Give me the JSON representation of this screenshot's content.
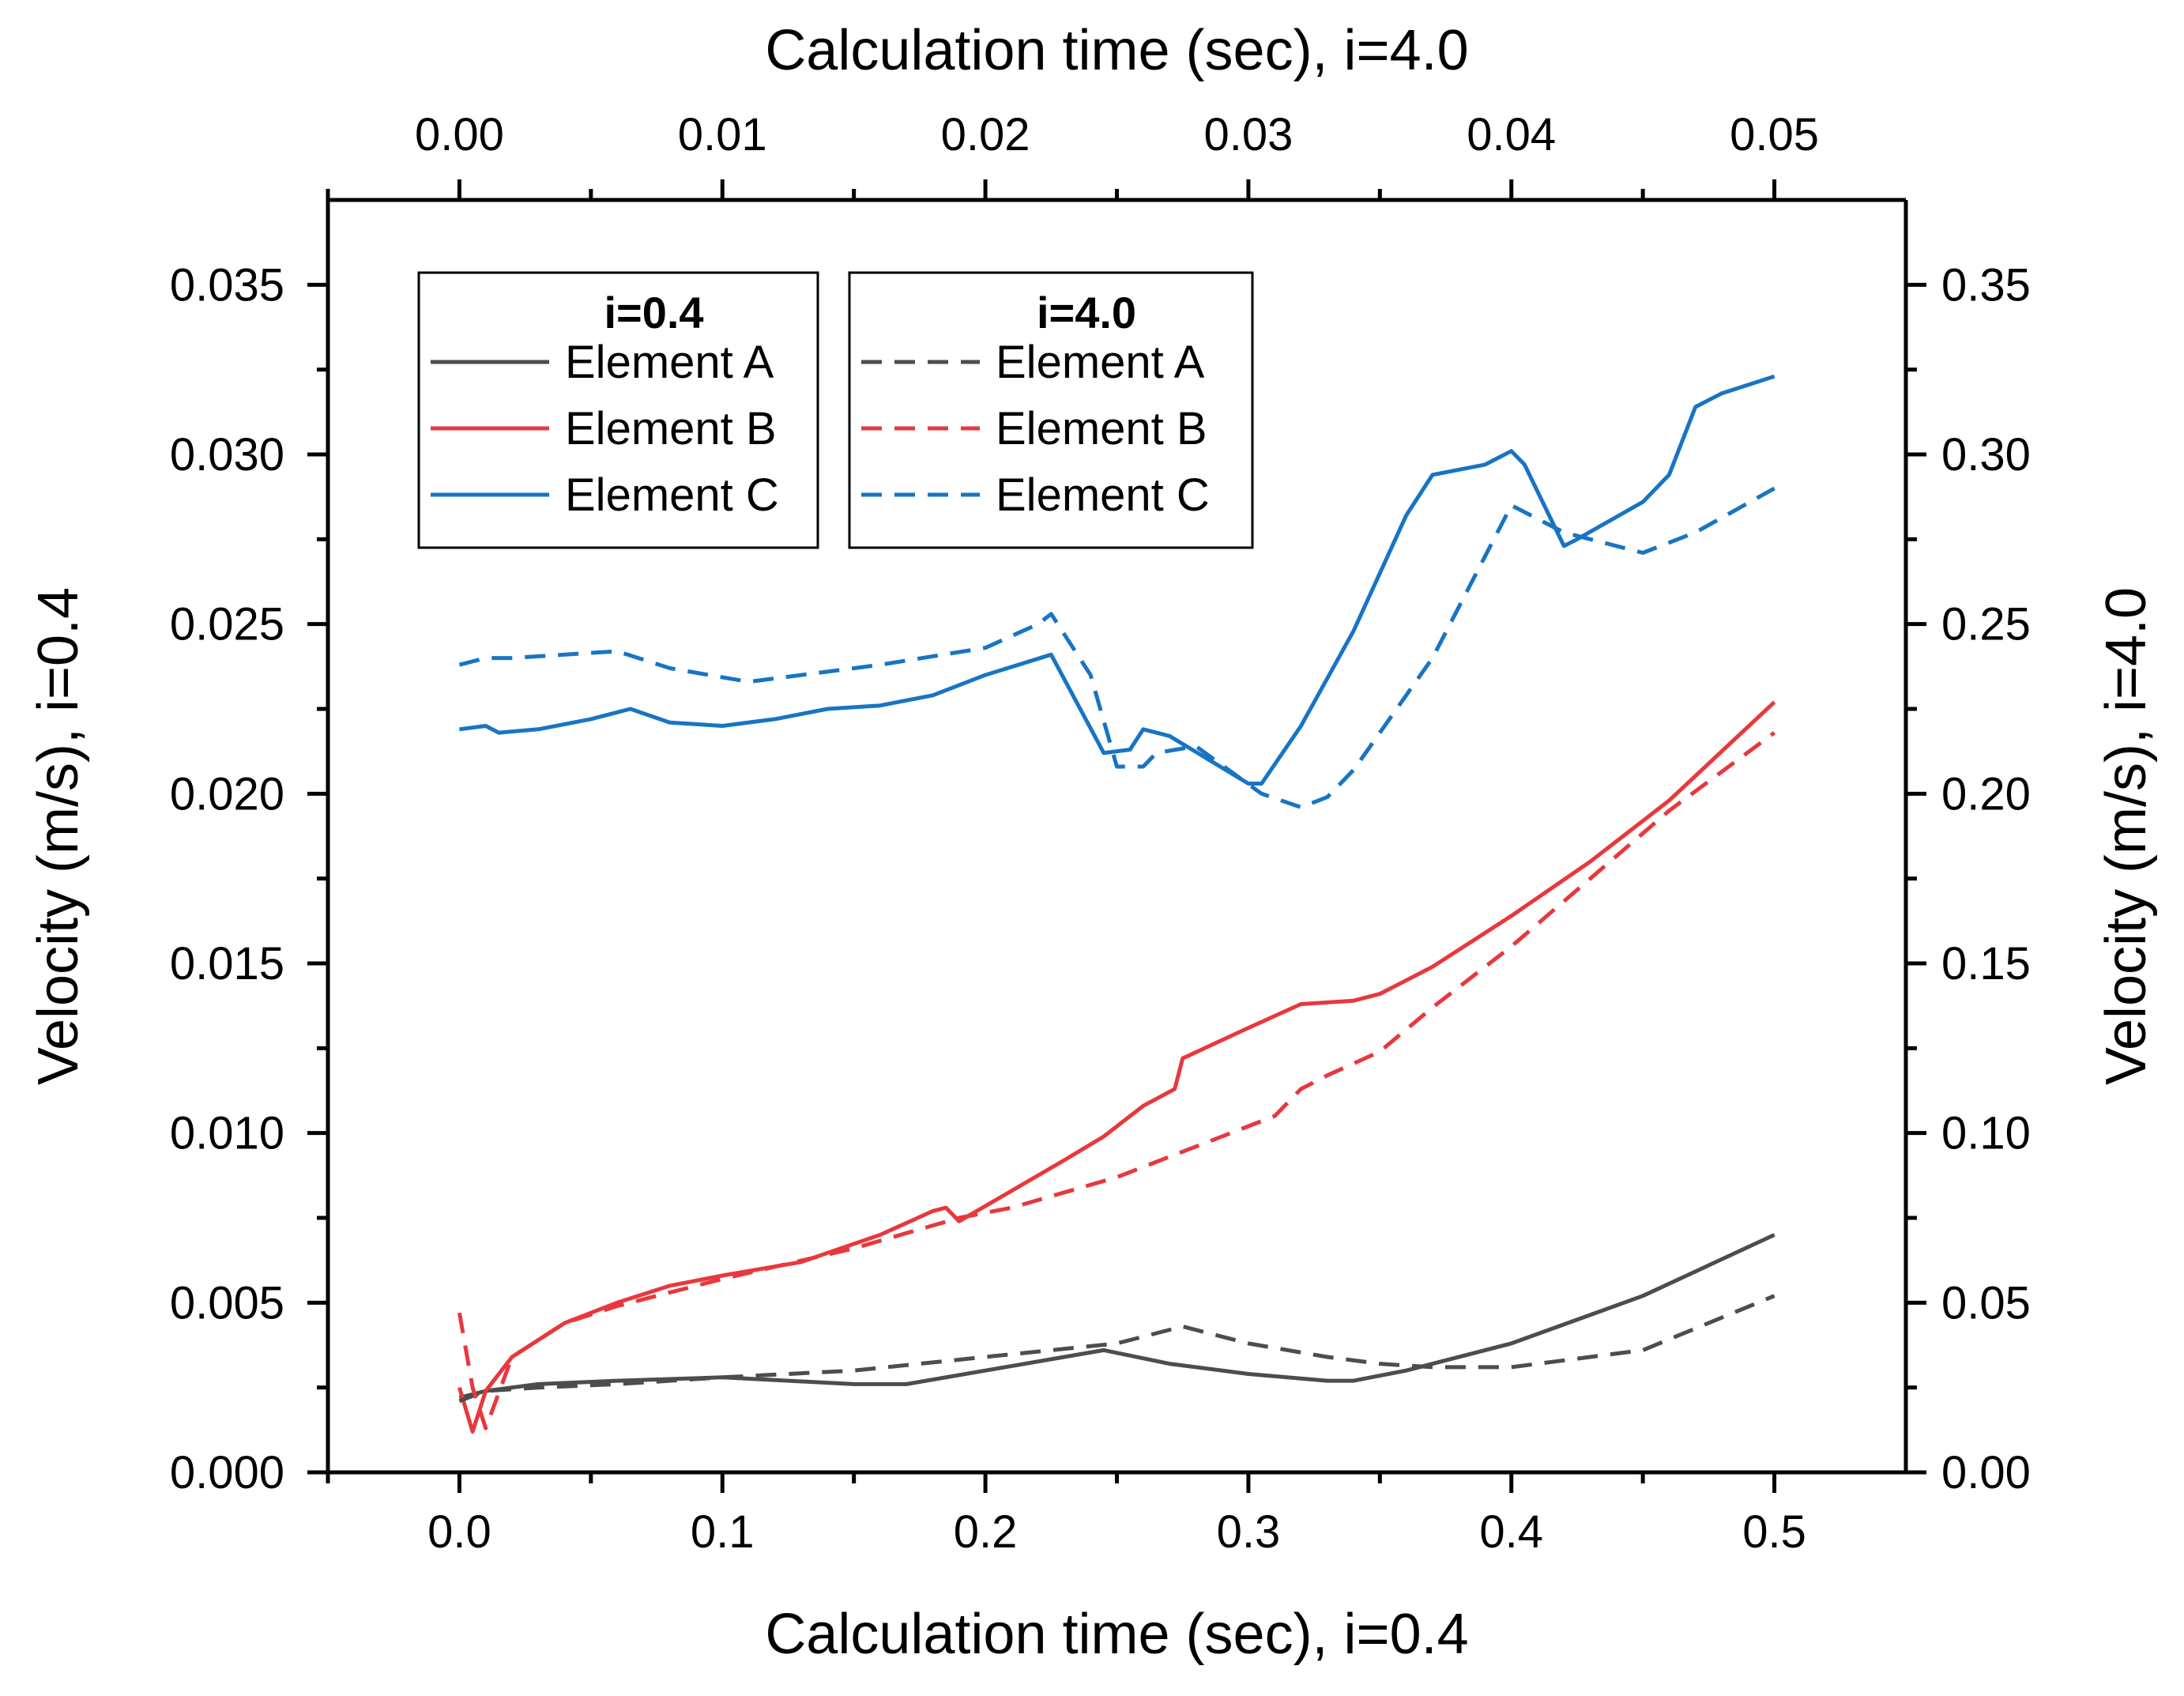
{
  "chart_data": {
    "type": "line",
    "axes": {
      "x_bottom": {
        "label": "Calculation time (sec), i=0.4",
        "range": [
          -0.05,
          0.55
        ],
        "ticks": [
          "0.0",
          "0.1",
          "0.2",
          "0.3",
          "0.4",
          "0.5"
        ],
        "tick_values": [
          0.0,
          0.1,
          0.2,
          0.3,
          0.4,
          0.5
        ]
      },
      "x_top": {
        "label": "Calculation time (sec), i=4.0",
        "range": [
          -0.005,
          0.055
        ],
        "ticks": [
          "0.00",
          "0.01",
          "0.02",
          "0.03",
          "0.04",
          "0.05"
        ],
        "tick_values": [
          0.0,
          0.01,
          0.02,
          0.03,
          0.04,
          0.05
        ]
      },
      "y_left": {
        "label": "Velocity (m/s), i=0.4",
        "range": [
          0.0,
          0.0375
        ],
        "ticks": [
          "0.000",
          "0.005",
          "0.010",
          "0.015",
          "0.020",
          "0.025",
          "0.030",
          "0.035"
        ],
        "tick_values": [
          0.0,
          0.005,
          0.01,
          0.015,
          0.02,
          0.025,
          0.03,
          0.035
        ]
      },
      "y_right": {
        "label": "Velocity (m/s), i=4.0",
        "range": [
          0.0,
          0.375
        ],
        "ticks": [
          "0.00",
          "0.05",
          "0.10",
          "0.15",
          "0.20",
          "0.25",
          "0.30",
          "0.35"
        ],
        "tick_values": [
          0.0,
          0.05,
          0.1,
          0.15,
          0.2,
          0.25,
          0.3,
          0.35
        ]
      }
    },
    "grid": false,
    "legend": {
      "placement": "top-left",
      "groups": [
        {
          "title": "i=0.4",
          "entries": [
            "Element A",
            "Element B",
            "Element C"
          ],
          "style": "solid"
        },
        {
          "title": "i=4.0",
          "entries": [
            "Element A",
            "Element B",
            "Element C"
          ],
          "style": "dashed"
        }
      ]
    },
    "colors": {
      "Element A": "#4d4d4d",
      "Element B": "#e8383d",
      "Element C": "#1874c4",
      "axes": "#000000"
    },
    "series": [
      {
        "name": "Element A",
        "group": "i=0.4",
        "dash": false,
        "x_axis": "bottom",
        "y_axis": "left",
        "x": [
          0.0,
          0.01,
          0.03,
          0.06,
          0.1,
          0.15,
          0.17,
          0.2,
          0.23,
          0.245,
          0.27,
          0.3,
          0.33,
          0.34,
          0.36,
          0.4,
          0.45,
          0.5
        ],
        "y": [
          0.0022,
          0.0024,
          0.0026,
          0.0027,
          0.0028,
          0.0026,
          0.0026,
          0.003,
          0.0034,
          0.0036,
          0.0032,
          0.0029,
          0.0027,
          0.0027,
          0.003,
          0.0038,
          0.0052,
          0.007
        ]
      },
      {
        "name": "Element B",
        "group": "i=0.4",
        "dash": false,
        "x_axis": "bottom",
        "y_axis": "left",
        "x": [
          0.0,
          0.005,
          0.01,
          0.02,
          0.04,
          0.06,
          0.08,
          0.1,
          0.13,
          0.16,
          0.18,
          0.185,
          0.19,
          0.21,
          0.23,
          0.245,
          0.26,
          0.272,
          0.275,
          0.3,
          0.32,
          0.34,
          0.35,
          0.37,
          0.4,
          0.43,
          0.46,
          0.5
        ],
        "y": [
          0.0025,
          0.0012,
          0.0024,
          0.0034,
          0.0044,
          0.005,
          0.0055,
          0.0058,
          0.0062,
          0.007,
          0.0077,
          0.0078,
          0.0074,
          0.0083,
          0.0092,
          0.0099,
          0.0108,
          0.0113,
          0.0122,
          0.0131,
          0.0138,
          0.0139,
          0.0141,
          0.0149,
          0.0164,
          0.018,
          0.0198,
          0.0227
        ]
      },
      {
        "name": "Element C",
        "group": "i=0.4",
        "dash": false,
        "x_axis": "bottom",
        "y_axis": "left",
        "x": [
          0.0,
          0.01,
          0.015,
          0.03,
          0.05,
          0.065,
          0.08,
          0.1,
          0.12,
          0.14,
          0.16,
          0.18,
          0.2,
          0.225,
          0.245,
          0.255,
          0.26,
          0.27,
          0.3,
          0.305,
          0.32,
          0.34,
          0.36,
          0.37,
          0.39,
          0.4,
          0.405,
          0.42,
          0.425,
          0.45,
          0.46,
          0.47,
          0.48,
          0.5
        ],
        "y": [
          0.0219,
          0.022,
          0.0218,
          0.0219,
          0.0222,
          0.0225,
          0.0221,
          0.022,
          0.0222,
          0.0225,
          0.0226,
          0.0229,
          0.0235,
          0.0241,
          0.0212,
          0.0213,
          0.0219,
          0.0217,
          0.0203,
          0.0203,
          0.022,
          0.0248,
          0.0282,
          0.0294,
          0.0297,
          0.0301,
          0.0297,
          0.0273,
          0.0275,
          0.0286,
          0.0294,
          0.0314,
          0.0318,
          0.0323
        ]
      },
      {
        "name": "Element A",
        "group": "i=4.0",
        "dash": true,
        "x_axis": "top",
        "y_axis": "right",
        "x": [
          0.0,
          0.001,
          0.003,
          0.006,
          0.01,
          0.015,
          0.02,
          0.025,
          0.0275,
          0.03,
          0.033,
          0.035,
          0.037,
          0.04,
          0.045,
          0.05
        ],
        "y": [
          0.021,
          0.024,
          0.025,
          0.026,
          0.028,
          0.03,
          0.034,
          0.038,
          0.043,
          0.038,
          0.034,
          0.032,
          0.031,
          0.031,
          0.036,
          0.052
        ]
      },
      {
        "name": "Element B",
        "group": "i=4.0",
        "dash": true,
        "x_axis": "top",
        "y_axis": "right",
        "x": [
          0.0,
          0.0005,
          0.001,
          0.002,
          0.004,
          0.006,
          0.01,
          0.015,
          0.019,
          0.021,
          0.025,
          0.028,
          0.031,
          0.032,
          0.033,
          0.035,
          0.037,
          0.04,
          0.043,
          0.046,
          0.05
        ],
        "y": [
          0.047,
          0.025,
          0.013,
          0.034,
          0.044,
          0.049,
          0.057,
          0.066,
          0.075,
          0.078,
          0.087,
          0.096,
          0.105,
          0.113,
          0.117,
          0.124,
          0.137,
          0.155,
          0.175,
          0.195,
          0.218
        ]
      },
      {
        "name": "Element C",
        "group": "i=4.0",
        "dash": true,
        "x_axis": "top",
        "y_axis": "right",
        "x": [
          0.0,
          0.001,
          0.002,
          0.006,
          0.008,
          0.011,
          0.016,
          0.02,
          0.022,
          0.0225,
          0.024,
          0.025,
          0.026,
          0.0265,
          0.028,
          0.0305,
          0.032,
          0.033,
          0.034,
          0.037,
          0.039,
          0.04,
          0.042,
          0.045,
          0.047,
          0.05
        ],
        "y": [
          0.238,
          0.24,
          0.24,
          0.242,
          0.237,
          0.233,
          0.238,
          0.243,
          0.25,
          0.253,
          0.235,
          0.208,
          0.208,
          0.212,
          0.214,
          0.2,
          0.196,
          0.199,
          0.207,
          0.24,
          0.27,
          0.285,
          0.277,
          0.271,
          0.277,
          0.29
        ]
      }
    ]
  }
}
